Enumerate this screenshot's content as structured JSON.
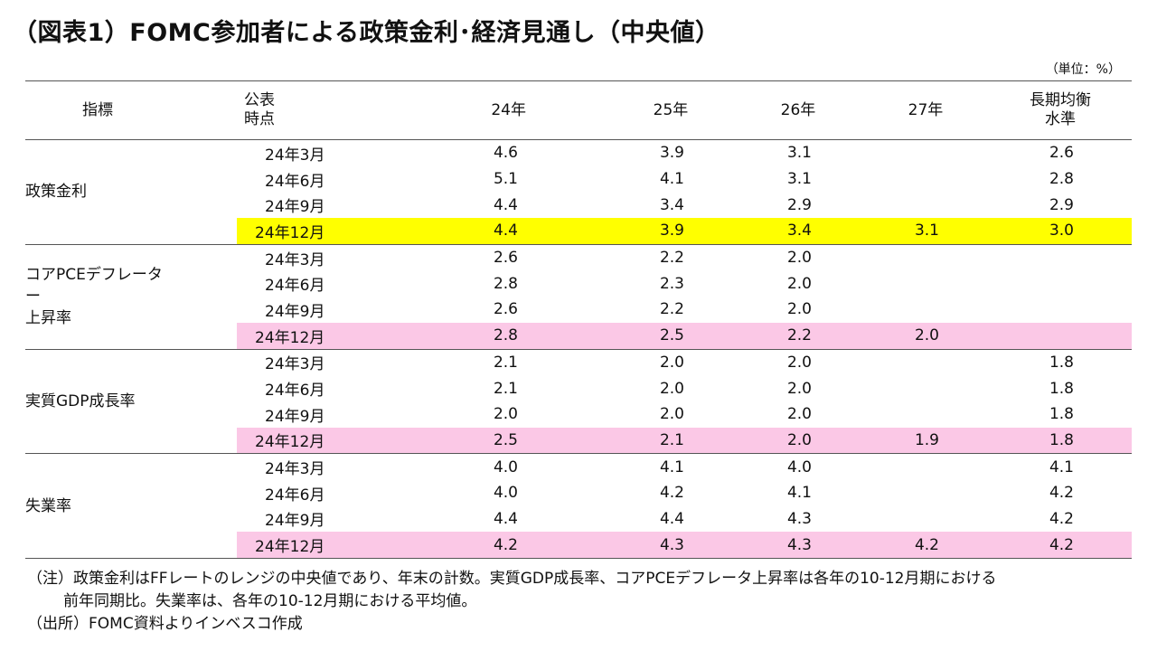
{
  "title": "（図表1）FOMC参加者による政策金利･経済見通し（中央値）",
  "unit": "（単位：%）",
  "table": {
    "headers": [
      "指標",
      "公表\n時点",
      "24年",
      "25年",
      "26年",
      "27年",
      "長期均衡\n水準"
    ],
    "groups": [
      {
        "indicator": "政策金利",
        "rows": [
          {
            "date": "24年3月",
            "v24": "4.6",
            "v25": "3.9",
            "v26": "3.1",
            "v27": "",
            "lr": "2.6"
          },
          {
            "date": "24年6月",
            "v24": "5.1",
            "v25": "4.1",
            "v26": "3.1",
            "v27": "",
            "lr": "2.8"
          },
          {
            "date": "24年9月",
            "v24": "4.4",
            "v25": "3.4",
            "v26": "2.9",
            "v27": "",
            "lr": "2.9"
          },
          {
            "date": "24年12月",
            "v24": "4.4",
            "v25": "3.9",
            "v26": "3.4",
            "v27": "3.1",
            "lr": "3.0"
          }
        ],
        "highlight_color": "#ffff00"
      },
      {
        "indicator": "コアPCEデフレーター\n上昇率",
        "rows": [
          {
            "date": "24年3月",
            "v24": "2.6",
            "v25": "2.2",
            "v26": "2.0",
            "v27": "",
            "lr": ""
          },
          {
            "date": "24年6月",
            "v24": "2.8",
            "v25": "2.3",
            "v26": "2.0",
            "v27": "",
            "lr": ""
          },
          {
            "date": "24年9月",
            "v24": "2.6",
            "v25": "2.2",
            "v26": "2.0",
            "v27": "",
            "lr": ""
          },
          {
            "date": "24年12月",
            "v24": "2.8",
            "v25": "2.5",
            "v26": "2.2",
            "v27": "2.0",
            "lr": ""
          }
        ],
        "highlight_color": "#fbc8e6"
      },
      {
        "indicator": "実質GDP成長率",
        "rows": [
          {
            "date": "24年3月",
            "v24": "2.1",
            "v25": "2.0",
            "v26": "2.0",
            "v27": "",
            "lr": "1.8"
          },
          {
            "date": "24年6月",
            "v24": "2.1",
            "v25": "2.0",
            "v26": "2.0",
            "v27": "",
            "lr": "1.8"
          },
          {
            "date": "24年9月",
            "v24": "2.0",
            "v25": "2.0",
            "v26": "2.0",
            "v27": "",
            "lr": "1.8"
          },
          {
            "date": "24年12月",
            "v24": "2.5",
            "v25": "2.1",
            "v26": "2.0",
            "v27": "1.9",
            "lr": "1.8"
          }
        ],
        "highlight_color": "#fbc8e6"
      },
      {
        "indicator": "失業率",
        "rows": [
          {
            "date": "24年3月",
            "v24": "4.0",
            "v25": "4.1",
            "v26": "4.0",
            "v27": "",
            "lr": "4.1"
          },
          {
            "date": "24年6月",
            "v24": "4.0",
            "v25": "4.2",
            "v26": "4.1",
            "v27": "",
            "lr": "4.2"
          },
          {
            "date": "24年9月",
            "v24": "4.4",
            "v25": "4.4",
            "v26": "4.3",
            "v27": "",
            "lr": "4.2"
          },
          {
            "date": "24年12月",
            "v24": "4.2",
            "v25": "4.3",
            "v26": "4.3",
            "v27": "4.2",
            "lr": "4.2"
          }
        ],
        "highlight_color": "#fbc8e6"
      }
    ]
  },
  "notes": {
    "line1": "（注）政策金利はFFレートのレンジの中央値であり、年末の計数。実質GDP成長率、コアPCEデフレータ上昇率は各年の10-12月期における",
    "line2": "前年同期比。失業率は、各年の10-12月期における平均値。",
    "line3": "（出所）FOMC資料よりインベスコ作成"
  }
}
